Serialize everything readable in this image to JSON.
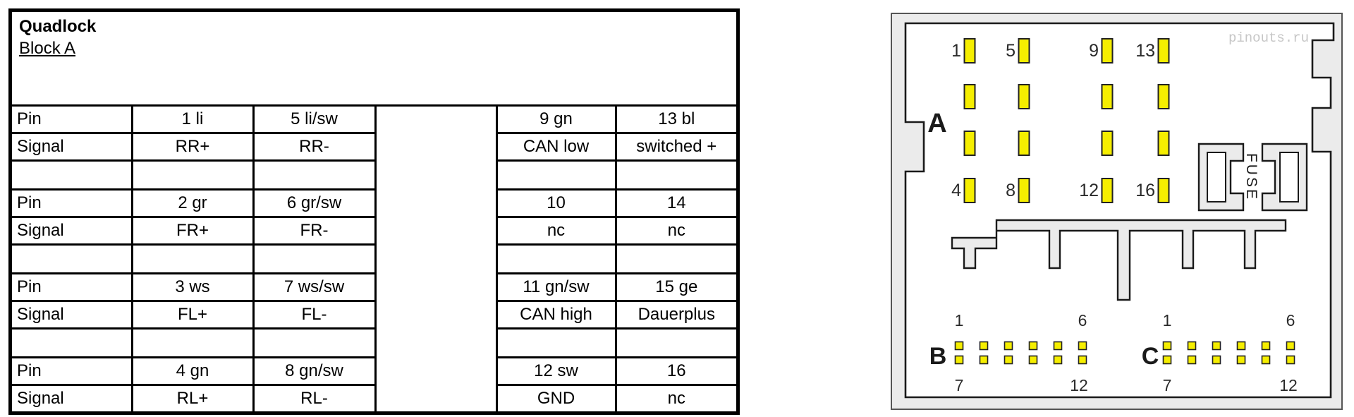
{
  "table": {
    "title": "Quadlock",
    "subtitle": "Block A",
    "rows": [
      {
        "c": [
          "Pin",
          "1 li",
          "5 li/sw",
          "9 gn",
          "13 bl"
        ]
      },
      {
        "c": [
          "Signal",
          "RR+",
          "RR-",
          "CAN low",
          "switched +"
        ]
      },
      {
        "c": [
          "",
          "",
          "",
          "",
          ""
        ]
      },
      {
        "c": [
          "Pin",
          "2 gr",
          "6 gr/sw",
          "10",
          "14"
        ]
      },
      {
        "c": [
          "Signal",
          "FR+",
          "FR-",
          "nc",
          "nc"
        ]
      },
      {
        "c": [
          "",
          "",
          "",
          "",
          ""
        ]
      },
      {
        "c": [
          "Pin",
          "3 ws",
          "7 ws/sw",
          "11 gn/sw",
          "15 ge"
        ]
      },
      {
        "c": [
          "Signal",
          "FL+",
          "FL-",
          "CAN high",
          "Dauerplus"
        ]
      },
      {
        "c": [
          "",
          "",
          "",
          "",
          ""
        ]
      },
      {
        "c": [
          "Pin",
          "4 gn",
          "8 gn/sw",
          "12 sw",
          "16"
        ]
      },
      {
        "c": [
          "Signal",
          "RL+",
          "RL-",
          "GND",
          "nc"
        ]
      }
    ]
  },
  "connector": {
    "watermark": "pinouts.ru",
    "fuse_label": "FUSE",
    "blocks": {
      "a": {
        "letter": "A",
        "top": [
          "1",
          "5",
          "9",
          "13"
        ],
        "bottom": [
          "4",
          "8",
          "12",
          "16"
        ]
      },
      "b": {
        "letter": "B",
        "tl": "1",
        "tr": "6",
        "bl": "7",
        "br": "12"
      },
      "c": {
        "letter": "C",
        "tl": "1",
        "tr": "6",
        "bl": "7",
        "br": "12"
      }
    },
    "colors": {
      "pin_yellow": "#f5ee00",
      "housing_gray": "#ebebeb",
      "outline_black": "#1a1a1a",
      "watermark_gray": "#c6c6c6"
    }
  }
}
